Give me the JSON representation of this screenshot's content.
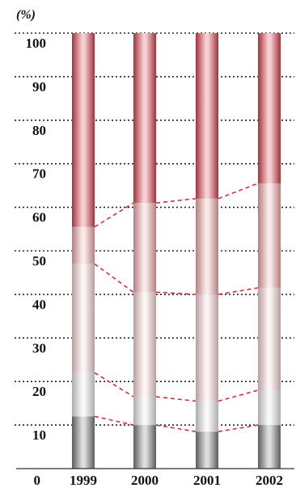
{
  "chart_data": {
    "type": "bar",
    "stacked": true,
    "unit_label": "(%)",
    "categories": [
      "1999",
      "2000",
      "2001",
      "2002"
    ],
    "highlight_category": "2002",
    "highlight_color": "#c8102e",
    "ylim": [
      0,
      100
    ],
    "y_ticks": [
      0,
      10,
      20,
      30,
      40,
      50,
      60,
      70,
      80,
      90,
      100
    ],
    "grid": true,
    "series": [
      {
        "color": "#7a7a7a",
        "values": [
          12,
          10,
          8.5,
          10
        ]
      },
      {
        "color": "#e5e5e5",
        "values": [
          10,
          6.5,
          7,
          8
        ]
      },
      {
        "color": "#f6d3d3",
        "values": [
          25,
          24,
          24.5,
          23.5
        ]
      },
      {
        "color": "#efa9a9",
        "values": [
          8.5,
          20.5,
          22,
          24
        ]
      },
      {
        "color": "#d9434f",
        "values": [
          44.5,
          39,
          38,
          34.5
        ]
      }
    ]
  }
}
